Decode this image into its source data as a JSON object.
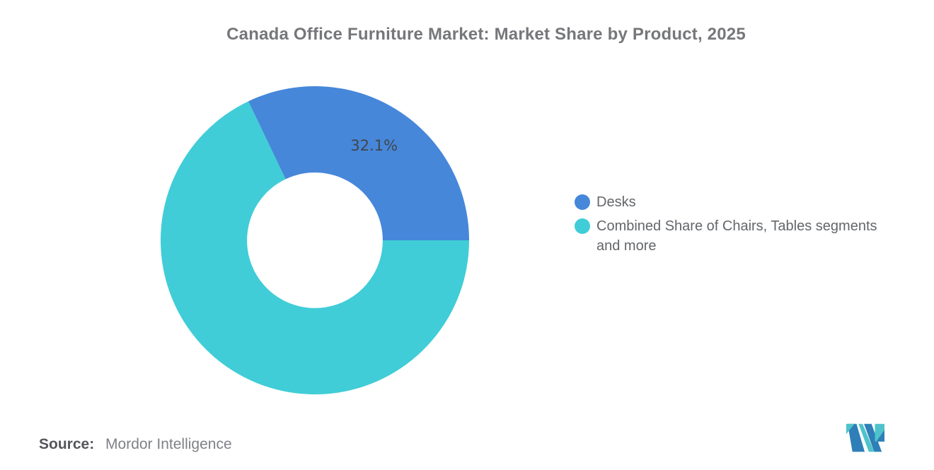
{
  "title": {
    "text": "Canada Office Furniture Market: Market Share by Product, 2025",
    "color": "#76777A"
  },
  "chart_data": {
    "type": "pie",
    "subtype": "donut",
    "title": "Canada Office Furniture Market: Market Share by Product, 2025",
    "unit": "%",
    "slices": [
      {
        "label": "Desks",
        "value": 32.1,
        "color": "#4687DA",
        "data_label": "32.1%"
      },
      {
        "label": "Combined Share of Chairs, Tables segments and more",
        "value": 67.9,
        "color": "#40CDD7",
        "data_label": null
      }
    ],
    "inner_radius_ratio": 0.44,
    "start_angle_deg": -25.56,
    "legend_position": "right",
    "data_label_color": "#41464C",
    "grid": false
  },
  "legend": {
    "text_color": "#63666A",
    "items": [
      {
        "label": "Desks"
      },
      {
        "label": "Combined Share of Chairs, Tables segments\nand more"
      }
    ]
  },
  "source": {
    "label": "Source:",
    "value": "Mordor Intelligence",
    "label_color": "#55565A",
    "value_color": "#7F8286"
  },
  "logo": {
    "name": "Mordor Intelligence",
    "teal": "#4EC3CB",
    "blue": "#2E7FB8"
  }
}
